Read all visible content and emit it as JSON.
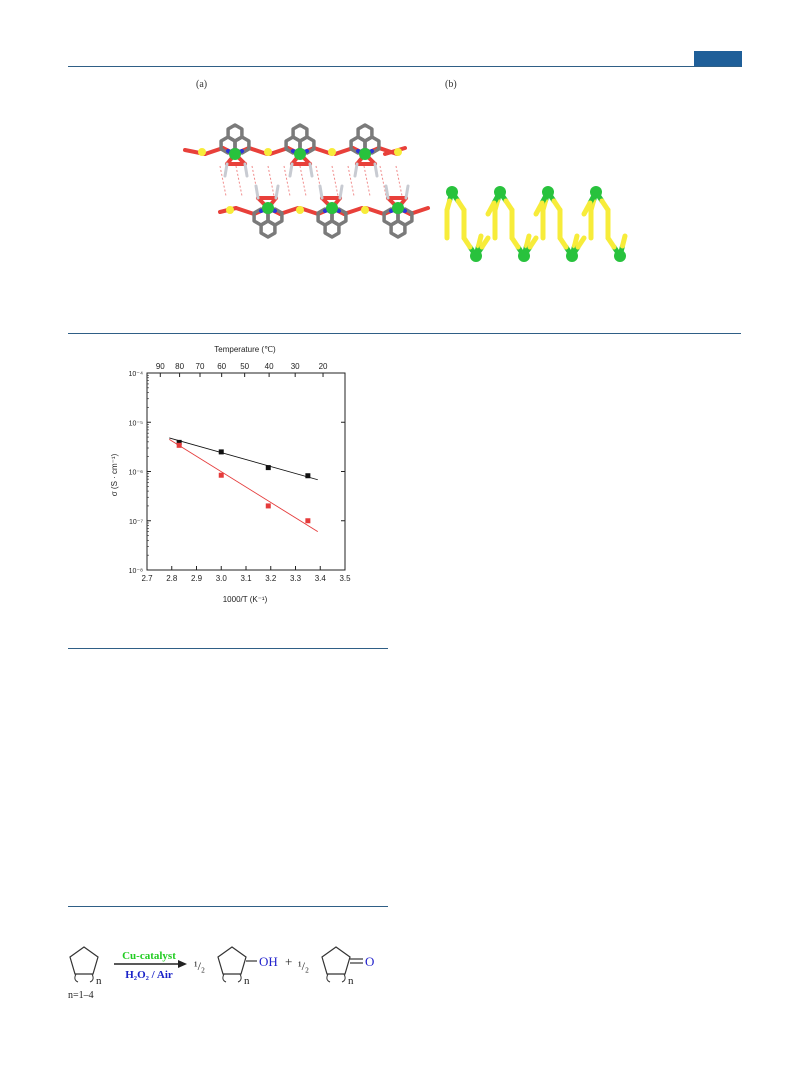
{
  "figure1": {
    "label_a": "(a)",
    "label_b": "(b)",
    "colors": {
      "carbon": "#7a7a7a",
      "nitrogen": "#2a35d9",
      "oxygen": "#e8403a",
      "sulfur": "#f7ec3a",
      "copper": "#28c23d",
      "hydrogen": "#c8cbd2"
    }
  },
  "chart_data": {
    "type": "scatter",
    "title": "",
    "xlabel": "1000/T (K⁻¹)",
    "ylabel": "σ (S · cm⁻¹)",
    "x2label": "Temperature (℃)",
    "xlim": [
      2.7,
      3.5
    ],
    "ylim": [
      1e-08,
      0.0001
    ],
    "yscale": "log",
    "x_ticks": [
      "2.7",
      "2.8",
      "2.9",
      "3.0",
      "3.1",
      "3.2",
      "3.3",
      "3.4",
      "3.5"
    ],
    "y_ticks": [
      "10⁻⁸",
      "10⁻⁷",
      "10⁻⁶",
      "10⁻⁵",
      "10⁻⁴"
    ],
    "top_ticks": [
      "90",
      "80",
      "70",
      "60",
      "50",
      "40",
      "30",
      "20"
    ],
    "series": [
      {
        "color": "#111111",
        "x": [
          2.83,
          3.0,
          3.19,
          3.35
        ],
        "y": [
          3.9e-06,
          2.5e-06,
          1.2e-06,
          8.2e-07
        ],
        "fit": [
          [
            2.79,
            4.8e-06
          ],
          [
            3.39,
            6.8e-07
          ]
        ]
      },
      {
        "color": "#e53b3b",
        "x": [
          2.83,
          3.0,
          3.19,
          3.35
        ],
        "y": [
          3.4e-06,
          8.4e-07,
          2e-07,
          1e-07
        ],
        "fit": [
          [
            2.79,
            4.5e-06
          ],
          [
            3.39,
            6e-08
          ]
        ]
      }
    ],
    "grid": false,
    "legend": "none"
  },
  "scheme": {
    "catalyst": "Cu-catalyst",
    "oxidant": "H₂O₂ / Air",
    "sub_n": "n",
    "n_range": "n=1–4",
    "half": "¹/₂",
    "plus": "+",
    "oh": "OH",
    "ketone_o": "O",
    "colors": {
      "catalyst": "#22cc22",
      "oxidant": "#1a23c8",
      "product_text": "#2222cc"
    }
  }
}
